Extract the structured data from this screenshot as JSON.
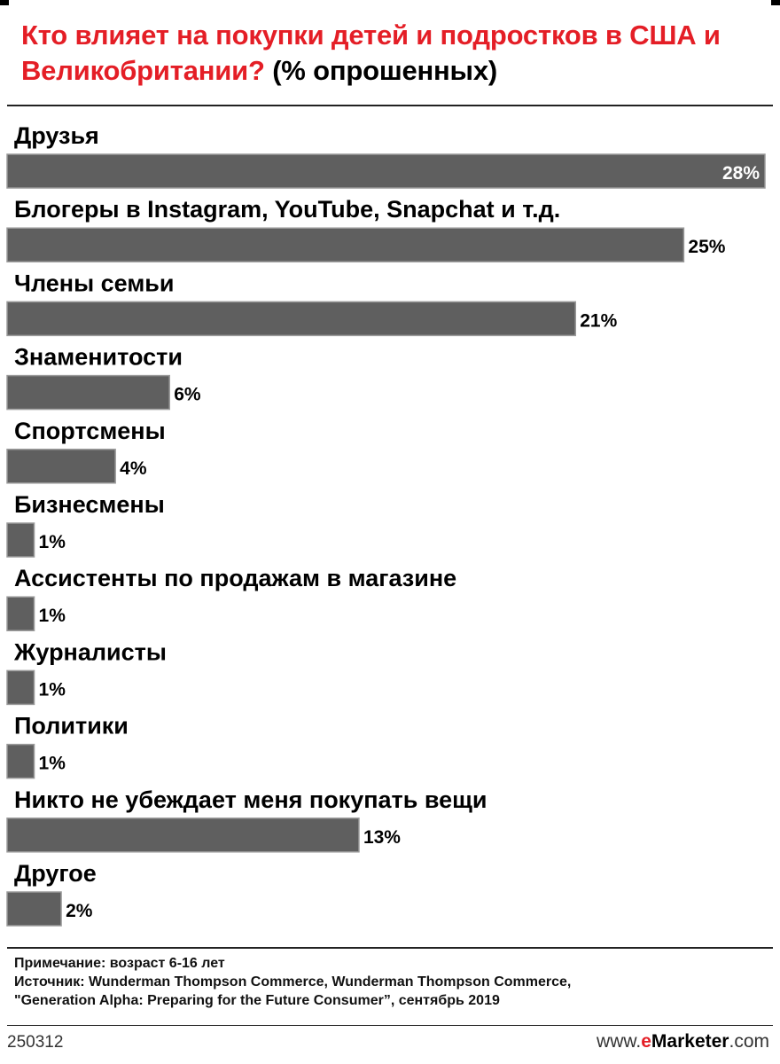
{
  "title": "Кто влияет на покупки детей и подростков в США и Великобритании?",
  "title_unit": "(% опрошенных)",
  "chart_data": {
    "type": "bar",
    "orientation": "horizontal",
    "categories": [
      "Друзья",
      "Блогеры в Instagram, YouTube, Snapchat и т.д.",
      "Члены семьи",
      "Знаменитости",
      "Спортсмены",
      "Бизнесмены",
      "Ассистенты по продажам в магазине",
      "Журналисты",
      "Политики",
      "Никто не убеждает меня покупать вещи",
      "Другое"
    ],
    "values": [
      28,
      25,
      21,
      6,
      4,
      1,
      1,
      1,
      1,
      13,
      2
    ],
    "value_labels": [
      "28%",
      "25%",
      "21%",
      "6%",
      "4%",
      "1%",
      "1%",
      "1%",
      "1%",
      "13%",
      "2%"
    ],
    "xlim": [
      0,
      28
    ],
    "bar_color": "#5f5f5f",
    "grid": false,
    "legend": "none"
  },
  "notes": [
    "Примечание: возраст 6-16 лет",
    "Источник: Wunderman Thompson Commerce, Wunderman Thompson Commerce,",
    "\"Generation Alpha: Preparing for the Future Consumer”, сентябрь 2019"
  ],
  "footer": {
    "chart_id": "250312",
    "brand_prefix": "www.",
    "brand_e": "e",
    "brand_name": "Marketer",
    "brand_suffix": ".com"
  },
  "colors": {
    "title": "#e41e26",
    "bar": "#5f5f5f",
    "bar_border": "#9a9a9a"
  }
}
